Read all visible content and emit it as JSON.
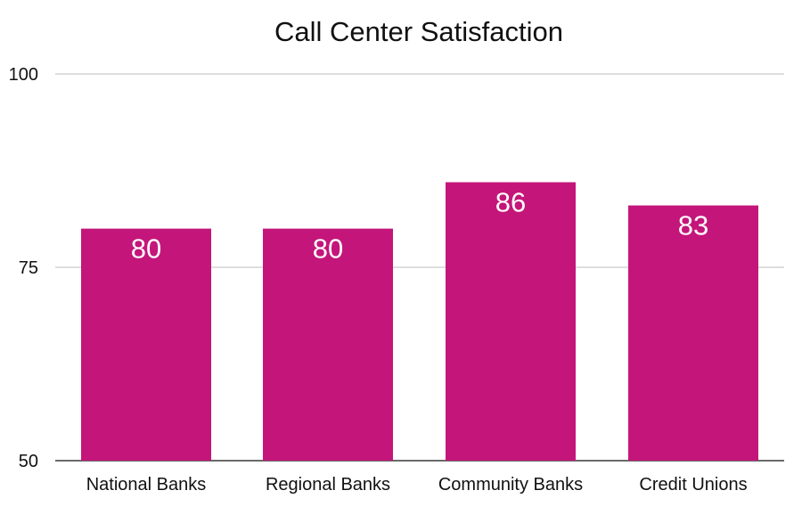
{
  "chart_data": {
    "type": "bar",
    "title": "Call Center Satisfaction",
    "xlabel": "",
    "ylabel": "",
    "categories": [
      "National Banks",
      "Regional Banks",
      "Community Banks",
      "Credit Unions"
    ],
    "values": [
      80,
      80,
      86,
      83
    ],
    "data_labels": [
      "80",
      "80",
      "86",
      "83"
    ],
    "ylim": [
      50,
      100
    ],
    "yticks": [
      50,
      75,
      100
    ],
    "grid": true,
    "legend": "none",
    "bar_color": "#C4167A"
  }
}
